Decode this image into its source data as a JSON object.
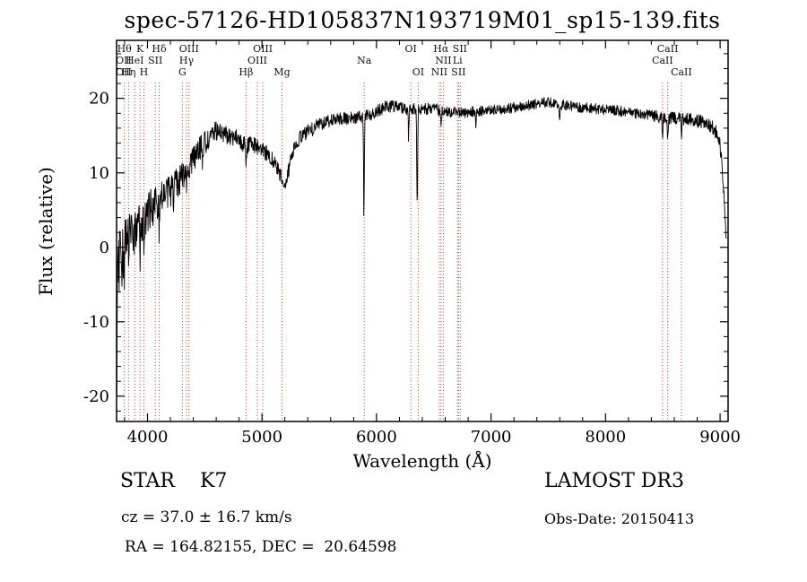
{
  "title": "spec-57126-HD105837N193719M01_sp15-139.fits",
  "chart_data": {
    "type": "line",
    "title": "spec-57126-HD105837N193719M01_sp15-139.fits",
    "xlabel": "Wavelength (Å)",
    "ylabel": "Flux (relative)",
    "xlim": [
      3730,
      9070
    ],
    "ylim": [
      -23.4,
      27.8
    ],
    "xticks": [
      4000,
      5000,
      6000,
      7000,
      8000,
      9000
    ],
    "yticks": [
      -20,
      -10,
      0,
      10,
      20
    ],
    "x_minor_step": 200,
    "y_minor_step": 2,
    "line_color": "#000000",
    "ref_line_color": "#aa3939",
    "label_color": "#111111",
    "seed": 20150413,
    "step": 3,
    "envelope": [
      [
        3730,
        -4
      ],
      [
        3745,
        -3
      ],
      [
        3760,
        -2
      ],
      [
        3780,
        -1
      ],
      [
        3800,
        0
      ],
      [
        3820,
        0.5
      ],
      [
        3840,
        1
      ],
      [
        3870,
        2
      ],
      [
        3900,
        2.5
      ],
      [
        3950,
        3.5
      ],
      [
        4000,
        4.5
      ],
      [
        4050,
        5.5
      ],
      [
        4100,
        6
      ],
      [
        4150,
        7
      ],
      [
        4200,
        7.5
      ],
      [
        4250,
        8.5
      ],
      [
        4300,
        9.5
      ],
      [
        4350,
        10.5
      ],
      [
        4400,
        12
      ],
      [
        4450,
        13
      ],
      [
        4500,
        14
      ],
      [
        4550,
        15
      ],
      [
        4600,
        15.8
      ],
      [
        4650,
        15.5
      ],
      [
        4700,
        15
      ],
      [
        4750,
        14.8
      ],
      [
        4800,
        14.5
      ],
      [
        4860,
        13.5
      ],
      [
        4900,
        14
      ],
      [
        4950,
        13.5
      ],
      [
        5000,
        13
      ],
      [
        5050,
        12.5
      ],
      [
        5100,
        11.5
      ],
      [
        5150,
        10
      ],
      [
        5200,
        8.5
      ],
      [
        5230,
        10
      ],
      [
        5270,
        13
      ],
      [
        5320,
        14.5
      ],
      [
        5400,
        15.5
      ],
      [
        5500,
        16.5
      ],
      [
        5600,
        17
      ],
      [
        5700,
        17.3
      ],
      [
        5800,
        17.5
      ],
      [
        5900,
        17.5
      ],
      [
        6000,
        18.3
      ],
      [
        6100,
        19
      ],
      [
        6200,
        18.8
      ],
      [
        6300,
        18.5
      ],
      [
        6400,
        18.5
      ],
      [
        6500,
        18.8
      ],
      [
        6563,
        18.3
      ],
      [
        6650,
        18.2
      ],
      [
        6750,
        18
      ],
      [
        6900,
        18.3
      ],
      [
        7000,
        18.5
      ],
      [
        7100,
        18.5
      ],
      [
        7200,
        18.8
      ],
      [
        7300,
        19
      ],
      [
        7400,
        19.3
      ],
      [
        7500,
        19.5
      ],
      [
        7600,
        19.2
      ],
      [
        7700,
        19
      ],
      [
        7800,
        18.8
      ],
      [
        7900,
        18.6
      ],
      [
        8000,
        18.5
      ],
      [
        8100,
        18.4
      ],
      [
        8200,
        18.2
      ],
      [
        8300,
        18
      ],
      [
        8400,
        17.8
      ],
      [
        8500,
        17.3
      ],
      [
        8600,
        17.4
      ],
      [
        8700,
        17.2
      ],
      [
        8800,
        17
      ],
      [
        8900,
        16.5
      ],
      [
        8950,
        16
      ],
      [
        9000,
        14
      ],
      [
        9030,
        8
      ],
      [
        9055,
        1
      ]
    ],
    "noise_amp": [
      [
        3730,
        4.5
      ],
      [
        3850,
        3.5
      ],
      [
        4000,
        2.8
      ],
      [
        4200,
        2.2
      ],
      [
        4400,
        1.8
      ],
      [
        4600,
        1.4
      ],
      [
        4800,
        1.2
      ],
      [
        5000,
        1.1
      ],
      [
        5300,
        1.0
      ],
      [
        5600,
        0.9
      ],
      [
        6000,
        0.85
      ],
      [
        6500,
        0.8
      ],
      [
        7000,
        0.7
      ],
      [
        7500,
        0.7
      ],
      [
        8000,
        0.75
      ],
      [
        8500,
        0.8
      ],
      [
        8800,
        0.9
      ],
      [
        9055,
        1.0
      ]
    ],
    "absorption_spikes": [
      {
        "wl": 3733,
        "depth": -18,
        "width": 3
      },
      {
        "wl": 3797,
        "depth": -6,
        "width": 3
      },
      {
        "wl": 3934,
        "depth": -5,
        "width": 4
      },
      {
        "wl": 3968,
        "depth": -4,
        "width": 4
      },
      {
        "wl": 4102,
        "depth": -4,
        "width": 4
      },
      {
        "wl": 4227,
        "depth": -3,
        "width": 4
      },
      {
        "wl": 4341,
        "depth": -3,
        "width": 4
      },
      {
        "wl": 4481,
        "depth": -3,
        "width": 4
      },
      {
        "wl": 4861,
        "depth": -2.5,
        "width": 5
      },
      {
        "wl": 5890,
        "depth": -13,
        "width": 5
      },
      {
        "wl": 6280,
        "depth": -4,
        "width": 4
      },
      {
        "wl": 6355,
        "depth": -13,
        "width": 5
      },
      {
        "wl": 6563,
        "depth": -2,
        "width": 5
      },
      {
        "wl": 6867,
        "depth": -1.5,
        "width": 6
      },
      {
        "wl": 7600,
        "depth": -1.5,
        "width": 8
      },
      {
        "wl": 8498,
        "depth": -2.5,
        "width": 5
      },
      {
        "wl": 8542,
        "depth": -3,
        "width": 5
      },
      {
        "wl": 8662,
        "depth": -2.5,
        "width": 5
      }
    ],
    "spectral_lines": [
      3727,
      3798,
      3835,
      3889,
      3934,
      3968,
      4068,
      4102,
      4305,
      4341,
      4363,
      4861,
      4959,
      5007,
      5175,
      5893,
      6300,
      6364,
      6548,
      6563,
      6583,
      6708,
      6716,
      6731,
      8498,
      8542,
      8662
    ],
    "line_labels": [
      {
        "text": "Hθ",
        "wl": 3798,
        "row": 1
      },
      {
        "text": "K",
        "wl": 3934,
        "row": 1
      },
      {
        "text": "Hδ",
        "wl": 4102,
        "row": 1
      },
      {
        "text": "OIII",
        "wl": 4363,
        "row": 1
      },
      {
        "text": "OIII",
        "wl": 5007,
        "row": 1
      },
      {
        "text": "OI",
        "wl": 6300,
        "row": 1
      },
      {
        "text": "Hα",
        "wl": 6563,
        "row": 1
      },
      {
        "text": "SII",
        "wl": 6728,
        "row": 1
      },
      {
        "text": "CaII",
        "wl": 8542,
        "row": 1
      },
      {
        "text": "OII",
        "wl": 3727,
        "row": 2
      },
      {
        "text": "HeI",
        "wl": 3889,
        "row": 2
      },
      {
        "text": "SII",
        "wl": 4068,
        "row": 2
      },
      {
        "text": "Hγ",
        "wl": 4341,
        "row": 2
      },
      {
        "text": "OIII",
        "wl": 4959,
        "row": 2
      },
      {
        "text": "Na",
        "wl": 5893,
        "row": 2
      },
      {
        "text": "NII",
        "wl": 6583,
        "row": 2
      },
      {
        "text": "Li",
        "wl": 6708,
        "row": 2
      },
      {
        "text": "CaII",
        "wl": 8498,
        "row": 2
      },
      {
        "text": "OII",
        "wl": 3722,
        "row": 3
      },
      {
        "text": "Hη",
        "wl": 3835,
        "row": 3
      },
      {
        "text": "H",
        "wl": 3968,
        "row": 3
      },
      {
        "text": "G",
        "wl": 4305,
        "row": 3
      },
      {
        "text": "Hβ",
        "wl": 4861,
        "row": 3
      },
      {
        "text": "Mg",
        "wl": 5175,
        "row": 3
      },
      {
        "text": "OI",
        "wl": 6364,
        "row": 3
      },
      {
        "text": "NII",
        "wl": 6548,
        "row": 3
      },
      {
        "text": "SII",
        "wl": 6716,
        "row": 3
      },
      {
        "text": "CaII",
        "wl": 8662,
        "row": 3
      }
    ]
  },
  "annotations": {
    "class": "STAR    K7",
    "survey": "LAMOST DR3",
    "cz": "cz = 37.0 ± 16.7 km/s",
    "obs_date": "Obs-Date: 20150413",
    "ra_dec": "RA = 164.82155, DEC =  20.64598"
  }
}
